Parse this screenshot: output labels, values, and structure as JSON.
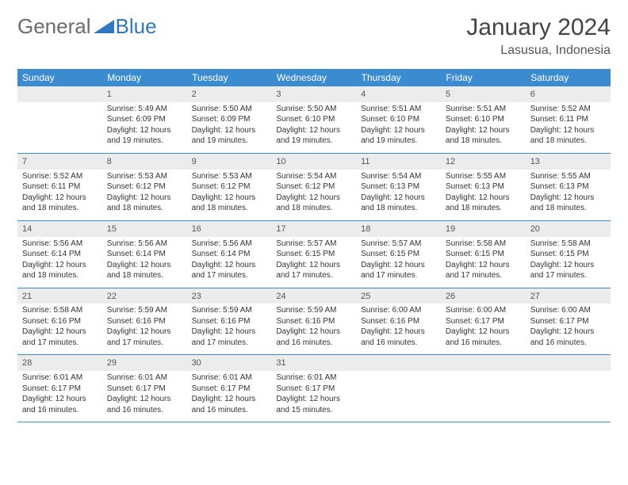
{
  "branding": {
    "part1": "General",
    "part2": "Blue"
  },
  "header": {
    "month_title": "January 2024",
    "location": "Lasusua, Indonesia"
  },
  "colors": {
    "header_bg": "#3b8bd0",
    "header_text": "#ffffff",
    "daynum_bg": "#ececec",
    "border": "#3b8bd0",
    "text": "#333333",
    "logo_gray": "#6b6b6b",
    "logo_blue": "#2f78c0"
  },
  "weekdays": [
    "Sunday",
    "Monday",
    "Tuesday",
    "Wednesday",
    "Thursday",
    "Friday",
    "Saturday"
  ],
  "weeks": [
    [
      null,
      {
        "n": "1",
        "sr": "Sunrise: 5:49 AM",
        "ss": "Sunset: 6:09 PM",
        "dl": "Daylight: 12 hours and 19 minutes."
      },
      {
        "n": "2",
        "sr": "Sunrise: 5:50 AM",
        "ss": "Sunset: 6:09 PM",
        "dl": "Daylight: 12 hours and 19 minutes."
      },
      {
        "n": "3",
        "sr": "Sunrise: 5:50 AM",
        "ss": "Sunset: 6:10 PM",
        "dl": "Daylight: 12 hours and 19 minutes."
      },
      {
        "n": "4",
        "sr": "Sunrise: 5:51 AM",
        "ss": "Sunset: 6:10 PM",
        "dl": "Daylight: 12 hours and 19 minutes."
      },
      {
        "n": "5",
        "sr": "Sunrise: 5:51 AM",
        "ss": "Sunset: 6:10 PM",
        "dl": "Daylight: 12 hours and 18 minutes."
      },
      {
        "n": "6",
        "sr": "Sunrise: 5:52 AM",
        "ss": "Sunset: 6:11 PM",
        "dl": "Daylight: 12 hours and 18 minutes."
      }
    ],
    [
      {
        "n": "7",
        "sr": "Sunrise: 5:52 AM",
        "ss": "Sunset: 6:11 PM",
        "dl": "Daylight: 12 hours and 18 minutes."
      },
      {
        "n": "8",
        "sr": "Sunrise: 5:53 AM",
        "ss": "Sunset: 6:12 PM",
        "dl": "Daylight: 12 hours and 18 minutes."
      },
      {
        "n": "9",
        "sr": "Sunrise: 5:53 AM",
        "ss": "Sunset: 6:12 PM",
        "dl": "Daylight: 12 hours and 18 minutes."
      },
      {
        "n": "10",
        "sr": "Sunrise: 5:54 AM",
        "ss": "Sunset: 6:12 PM",
        "dl": "Daylight: 12 hours and 18 minutes."
      },
      {
        "n": "11",
        "sr": "Sunrise: 5:54 AM",
        "ss": "Sunset: 6:13 PM",
        "dl": "Daylight: 12 hours and 18 minutes."
      },
      {
        "n": "12",
        "sr": "Sunrise: 5:55 AM",
        "ss": "Sunset: 6:13 PM",
        "dl": "Daylight: 12 hours and 18 minutes."
      },
      {
        "n": "13",
        "sr": "Sunrise: 5:55 AM",
        "ss": "Sunset: 6:13 PM",
        "dl": "Daylight: 12 hours and 18 minutes."
      }
    ],
    [
      {
        "n": "14",
        "sr": "Sunrise: 5:56 AM",
        "ss": "Sunset: 6:14 PM",
        "dl": "Daylight: 12 hours and 18 minutes."
      },
      {
        "n": "15",
        "sr": "Sunrise: 5:56 AM",
        "ss": "Sunset: 6:14 PM",
        "dl": "Daylight: 12 hours and 18 minutes."
      },
      {
        "n": "16",
        "sr": "Sunrise: 5:56 AM",
        "ss": "Sunset: 6:14 PM",
        "dl": "Daylight: 12 hours and 17 minutes."
      },
      {
        "n": "17",
        "sr": "Sunrise: 5:57 AM",
        "ss": "Sunset: 6:15 PM",
        "dl": "Daylight: 12 hours and 17 minutes."
      },
      {
        "n": "18",
        "sr": "Sunrise: 5:57 AM",
        "ss": "Sunset: 6:15 PM",
        "dl": "Daylight: 12 hours and 17 minutes."
      },
      {
        "n": "19",
        "sr": "Sunrise: 5:58 AM",
        "ss": "Sunset: 6:15 PM",
        "dl": "Daylight: 12 hours and 17 minutes."
      },
      {
        "n": "20",
        "sr": "Sunrise: 5:58 AM",
        "ss": "Sunset: 6:15 PM",
        "dl": "Daylight: 12 hours and 17 minutes."
      }
    ],
    [
      {
        "n": "21",
        "sr": "Sunrise: 5:58 AM",
        "ss": "Sunset: 6:16 PM",
        "dl": "Daylight: 12 hours and 17 minutes."
      },
      {
        "n": "22",
        "sr": "Sunrise: 5:59 AM",
        "ss": "Sunset: 6:16 PM",
        "dl": "Daylight: 12 hours and 17 minutes."
      },
      {
        "n": "23",
        "sr": "Sunrise: 5:59 AM",
        "ss": "Sunset: 6:16 PM",
        "dl": "Daylight: 12 hours and 17 minutes."
      },
      {
        "n": "24",
        "sr": "Sunrise: 5:59 AM",
        "ss": "Sunset: 6:16 PM",
        "dl": "Daylight: 12 hours and 16 minutes."
      },
      {
        "n": "25",
        "sr": "Sunrise: 6:00 AM",
        "ss": "Sunset: 6:16 PM",
        "dl": "Daylight: 12 hours and 16 minutes."
      },
      {
        "n": "26",
        "sr": "Sunrise: 6:00 AM",
        "ss": "Sunset: 6:17 PM",
        "dl": "Daylight: 12 hours and 16 minutes."
      },
      {
        "n": "27",
        "sr": "Sunrise: 6:00 AM",
        "ss": "Sunset: 6:17 PM",
        "dl": "Daylight: 12 hours and 16 minutes."
      }
    ],
    [
      {
        "n": "28",
        "sr": "Sunrise: 6:01 AM",
        "ss": "Sunset: 6:17 PM",
        "dl": "Daylight: 12 hours and 16 minutes."
      },
      {
        "n": "29",
        "sr": "Sunrise: 6:01 AM",
        "ss": "Sunset: 6:17 PM",
        "dl": "Daylight: 12 hours and 16 minutes."
      },
      {
        "n": "30",
        "sr": "Sunrise: 6:01 AM",
        "ss": "Sunset: 6:17 PM",
        "dl": "Daylight: 12 hours and 16 minutes."
      },
      {
        "n": "31",
        "sr": "Sunrise: 6:01 AM",
        "ss": "Sunset: 6:17 PM",
        "dl": "Daylight: 12 hours and 15 minutes."
      },
      null,
      null,
      null
    ]
  ]
}
